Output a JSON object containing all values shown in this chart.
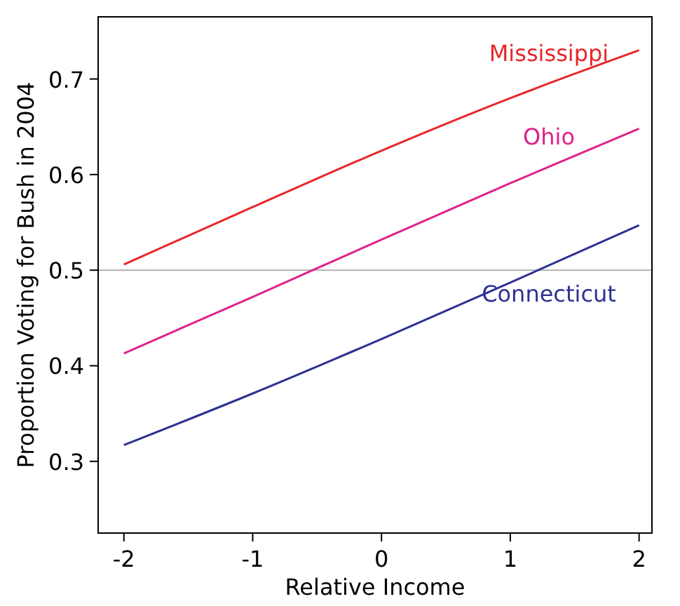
{
  "chart_data": {
    "type": "line",
    "xlabel": "Relative Income",
    "ylabel": "Proportion Voting for Bush in 2004",
    "x": [
      -2,
      -1,
      0,
      1,
      2
    ],
    "series": [
      {
        "name": "Mississippi",
        "color": "#e8262a",
        "values": [
          0.506,
          0.566,
          0.625,
          0.68,
          0.73
        ]
      },
      {
        "name": "Ohio",
        "color": "#e0218a",
        "values": [
          0.413,
          0.472,
          0.532,
          0.591,
          0.648
        ]
      },
      {
        "name": "Connecticut",
        "color": "#2e3192",
        "values": [
          0.317,
          0.371,
          0.428,
          0.487,
          0.547
        ]
      }
    ],
    "xlim": [
      -2.2,
      2.1
    ],
    "ylim": [
      0.225,
      0.765
    ],
    "xticks": [
      -2,
      -1,
      0,
      1,
      2
    ],
    "yticks": [
      0.3,
      0.4,
      0.5,
      0.6,
      0.7
    ],
    "ref_lines": [
      {
        "axis": "y",
        "value": 0.5,
        "color": "#b0b0b0"
      }
    ],
    "grid": false,
    "legend": false,
    "line_style": "solid"
  }
}
